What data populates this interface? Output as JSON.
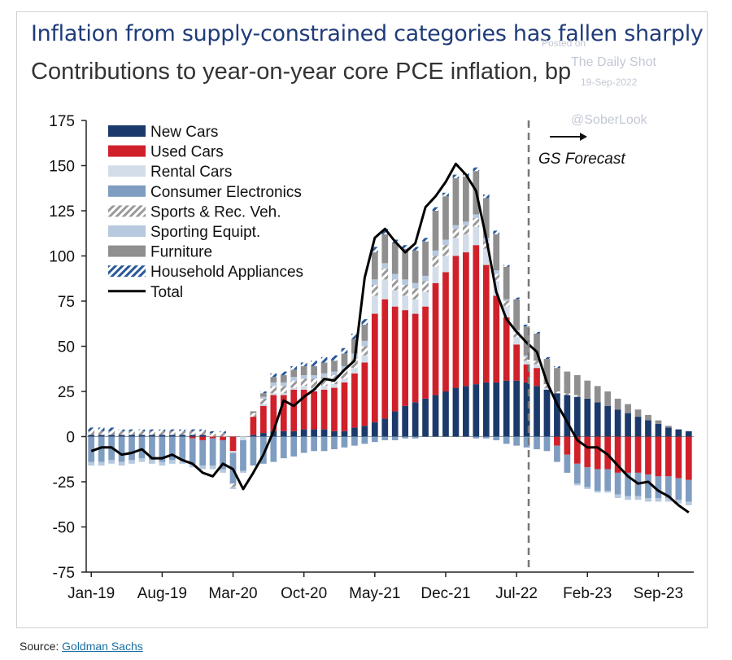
{
  "header": {
    "title": "Inflation from supply-constrained categories has fallen sharply",
    "subtitle": "Contributions to year-on-year core PCE inflation, bp"
  },
  "watermark": {
    "line1": "Posted on",
    "line2": "The Daily Shot",
    "line3": "19-Sep-2022",
    "handle": "@SoberLook"
  },
  "footer": {
    "source_prefix": "Source: ",
    "source_link": "Goldman Sachs"
  },
  "chart_data": {
    "type": "bar",
    "stacked": true,
    "ylim": [
      -75,
      175
    ],
    "yticks": [
      175,
      150,
      125,
      100,
      75,
      50,
      25,
      0,
      -25,
      -50,
      -75
    ],
    "x_tick_labels": [
      "Jan-19",
      "Aug-19",
      "Mar-20",
      "Oct-20",
      "May-21",
      "Dec-21",
      "Jul-22",
      "Feb-23",
      "Sep-23"
    ],
    "x_tick_index": [
      0,
      7,
      14,
      21,
      28,
      35,
      42,
      49,
      56
    ],
    "n_periods": 60,
    "forecast": {
      "label": "GS Forecast",
      "start_index": 43
    },
    "legend_position": "top-left",
    "colors": {
      "New Cars": "#1b3a6b",
      "Used Cars": "#d0202a",
      "Rental Cars": "#d3dde9",
      "Consumer Electronics": "#7f9dc1",
      "Sports & Rec. Veh.": "#9a9a9a",
      "Sporting Equipt.": "#b6c9de",
      "Furniture": "#8f8f8f",
      "Household Appliances": "#2a5a9a",
      "Total": "#000000"
    },
    "series": [
      {
        "name": "New Cars",
        "style": "solid",
        "values": [
          1,
          1,
          1,
          1,
          1,
          1,
          1,
          1,
          1,
          1,
          1,
          1,
          0,
          0,
          0,
          0,
          1,
          2,
          3,
          3,
          3,
          4,
          4,
          4,
          3,
          3,
          5,
          6,
          8,
          10,
          14,
          17,
          19,
          21,
          23,
          25,
          27,
          28,
          29,
          30,
          30,
          31,
          31,
          30,
          28,
          26,
          24,
          23,
          22,
          21,
          19,
          17,
          15,
          13,
          11,
          9,
          7,
          5,
          4,
          3
        ],
        "x_labels": "shared"
      },
      {
        "name": "Used Cars",
        "style": "solid",
        "values": [
          0,
          0,
          0,
          0,
          0,
          0,
          0,
          0,
          0,
          0,
          -1,
          -2,
          -1,
          -2,
          -8,
          0,
          10,
          15,
          20,
          20,
          23,
          22,
          21,
          22,
          24,
          27,
          30,
          35,
          60,
          66,
          58,
          53,
          49,
          51,
          62,
          66,
          73,
          74,
          77,
          65,
          48,
          35,
          20,
          10,
          10,
          0,
          -5,
          -10,
          -15,
          -17,
          -18,
          -18,
          -20,
          -20,
          -20,
          -21,
          -22,
          -22,
          -23,
          -24
        ],
        "x_labels": "shared"
      },
      {
        "name": "Rental Cars",
        "style": "solid",
        "values": [
          0,
          0,
          0,
          0,
          0,
          0,
          0,
          0,
          0,
          0,
          0,
          0,
          0,
          0,
          -1,
          -2,
          0,
          1,
          1,
          1,
          1,
          2,
          2,
          2,
          2,
          2,
          3,
          4,
          10,
          11,
          9,
          8,
          8,
          8,
          9,
          9,
          10,
          10,
          10,
          9,
          8,
          6,
          4,
          2,
          2,
          1,
          0,
          0,
          0,
          0,
          0,
          0,
          0,
          0,
          0,
          0,
          0,
          0,
          0,
          0
        ],
        "x_labels": "shared"
      },
      {
        "name": "Consumer Electronics",
        "style": "solid",
        "values": [
          -14,
          -14,
          -13,
          -14,
          -13,
          -12,
          -13,
          -14,
          -13,
          -13,
          -14,
          -14,
          -15,
          -16,
          -17,
          -17,
          -16,
          -15,
          -14,
          -12,
          -11,
          -9,
          -8,
          -8,
          -7,
          -6,
          -5,
          -4,
          -3,
          -2,
          -2,
          -1,
          -1,
          0,
          0,
          0,
          0,
          0,
          -1,
          -1,
          -2,
          -4,
          -5,
          -6,
          -7,
          -8,
          -9,
          -10,
          -11,
          -11,
          -12,
          -12,
          -12,
          -13,
          -13,
          -13,
          -12,
          -12,
          -12,
          -12
        ],
        "x_labels": "shared"
      },
      {
        "name": "Sports & Rec. Veh.",
        "style": "hatched",
        "values": [
          2,
          2,
          2,
          2,
          2,
          2,
          2,
          2,
          2,
          2,
          2,
          2,
          2,
          2,
          -2,
          0,
          2,
          3,
          4,
          4,
          4,
          4,
          5,
          5,
          5,
          5,
          5,
          5,
          6,
          6,
          6,
          6,
          6,
          6,
          6,
          6,
          5,
          5,
          5,
          4,
          4,
          3,
          3,
          2,
          2,
          2,
          1,
          1,
          1,
          0,
          0,
          0,
          0,
          0,
          0,
          0,
          0,
          0,
          0,
          0
        ],
        "x_labels": "shared"
      },
      {
        "name": "Sporting Equipt.",
        "style": "solid",
        "values": [
          -2,
          -2,
          -2,
          -2,
          -2,
          -2,
          -2,
          -2,
          -2,
          -2,
          -2,
          -2,
          -2,
          -2,
          -1,
          -1,
          0,
          1,
          2,
          2,
          2,
          2,
          2,
          2,
          2,
          2,
          3,
          3,
          3,
          3,
          3,
          3,
          3,
          3,
          3,
          3,
          2,
          2,
          2,
          2,
          2,
          1,
          1,
          1,
          0,
          0,
          0,
          0,
          -1,
          -1,
          -1,
          -1,
          -2,
          -2,
          -2,
          -2,
          -2,
          -2,
          -2,
          -2
        ],
        "x_labels": "shared"
      },
      {
        "name": "Furniture",
        "style": "solid",
        "values": [
          0,
          0,
          0,
          0,
          0,
          0,
          0,
          0,
          0,
          0,
          0,
          0,
          0,
          0,
          0,
          0,
          1,
          2,
          3,
          4,
          4,
          5,
          5,
          6,
          6,
          7,
          8,
          9,
          15,
          16,
          17,
          17,
          18,
          19,
          22,
          24,
          26,
          25,
          24,
          22,
          20,
          18,
          17,
          16,
          15,
          14,
          13,
          12,
          11,
          10,
          9,
          8,
          6,
          5,
          4,
          3,
          2,
          1,
          0,
          0
        ],
        "x_labels": "shared"
      },
      {
        "name": "Household Appliances",
        "style": "hatched",
        "values": [
          2,
          2,
          2,
          1,
          1,
          1,
          1,
          1,
          1,
          1,
          1,
          1,
          1,
          1,
          0,
          0,
          0,
          1,
          2,
          2,
          2,
          2,
          3,
          3,
          3,
          3,
          3,
          3,
          3,
          3,
          2,
          2,
          2,
          2,
          2,
          2,
          2,
          2,
          2,
          2,
          2,
          1,
          1,
          1,
          1,
          1,
          1,
          0,
          0,
          0,
          0,
          0,
          0,
          0,
          0,
          0,
          0,
          0,
          0,
          0
        ],
        "x_labels": "shared"
      },
      {
        "name": "Total",
        "style": "line",
        "values": [
          -8,
          -6,
          -6,
          -10,
          -9,
          -7,
          -12,
          -12,
          -10,
          -13,
          -15,
          -20,
          -22,
          -15,
          -18,
          -29,
          -20,
          -10,
          3,
          20,
          17,
          22,
          26,
          32,
          31,
          37,
          42,
          88,
          110,
          115,
          108,
          102,
          107,
          127,
          133,
          141,
          151,
          145,
          136,
          110,
          80,
          65,
          58,
          52,
          47,
          30,
          18,
          8,
          -2,
          -6,
          -6,
          -10,
          -16,
          -22,
          -26,
          -25,
          -30,
          -33,
          -38,
          -42
        ]
      }
    ]
  }
}
